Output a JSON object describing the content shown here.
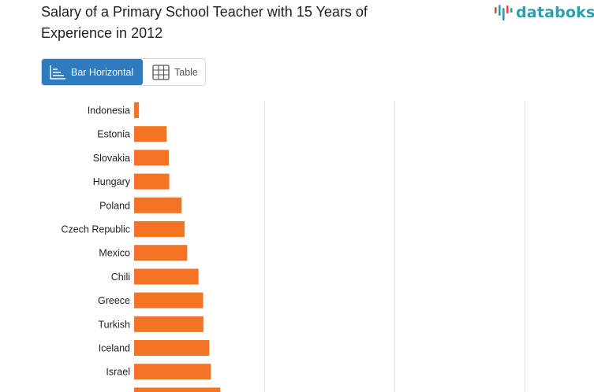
{
  "colors": {
    "bar": "#F47424",
    "accent": "#2E7BBD",
    "logo_teal": "#2A9FA9",
    "logo_red": "#E8453C",
    "grid": "#E3E3E3",
    "label": "#222222"
  },
  "header": {
    "title": "Salary of a Primary School Teacher with 15 Years of Experience in 2012",
    "logo_text": "databoks"
  },
  "view_toggle": {
    "options": [
      {
        "label": "Bar Horizontal",
        "icon": "bar-horizontal-icon",
        "active": true
      },
      {
        "label": "Table",
        "icon": "table-icon",
        "active": false
      }
    ]
  },
  "chart_data": {
    "type": "bar",
    "orientation": "horizontal",
    "title": "Salary of a Primary School Teacher with 15 Years of Experience in 2012",
    "xlabel": "",
    "ylabel": "",
    "grid": true,
    "xlim": [
      0,
      120000
    ],
    "categories": [
      "Indonesia",
      "Estonia",
      "Slovakia",
      "Hungary",
      "Poland",
      "Czech Republic",
      "Mexico",
      "Chili",
      "Greece",
      "Turkish",
      "Iceland",
      "Israel",
      ""
    ],
    "values": [
      1500,
      10000,
      10700,
      10800,
      14600,
      15500,
      16300,
      19800,
      21200,
      21300,
      23100,
      23600,
      26500
    ]
  }
}
